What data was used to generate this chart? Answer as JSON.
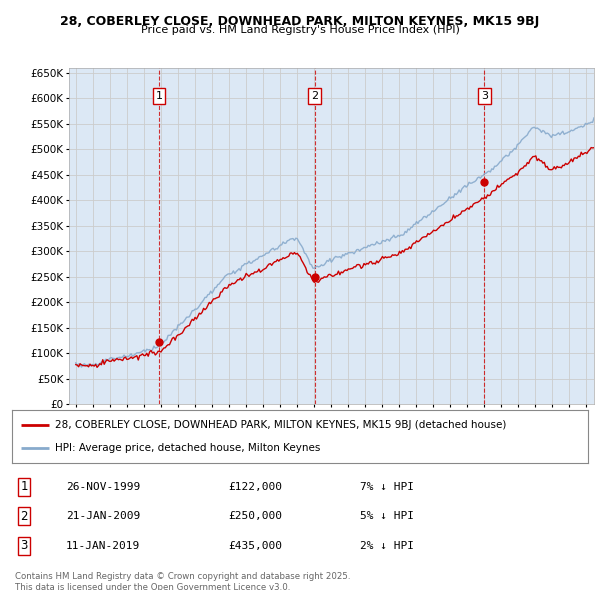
{
  "title_line1": "28, COBERLEY CLOSE, DOWNHEAD PARK, MILTON KEYNES, MK15 9BJ",
  "title_line2": "Price paid vs. HM Land Registry's House Price Index (HPI)",
  "background_color": "#dce8f5",
  "plot_bg_color": "#dce8f5",
  "fig_bg_color": "#ffffff",
  "sale_year_vals": [
    1999.9,
    2009.05,
    2019.05
  ],
  "sale_prices": [
    122000,
    250000,
    435000
  ],
  "sale_labels": [
    "1",
    "2",
    "3"
  ],
  "legend_label_red": "28, COBERLEY CLOSE, DOWNHEAD PARK, MILTON KEYNES, MK15 9BJ (detached house)",
  "legend_label_blue": "HPI: Average price, detached house, Milton Keynes",
  "table_rows": [
    [
      "1",
      "26-NOV-1999",
      "£122,000",
      "7% ↓ HPI"
    ],
    [
      "2",
      "21-JAN-2009",
      "£250,000",
      "5% ↓ HPI"
    ],
    [
      "3",
      "11-JAN-2019",
      "£435,000",
      "2% ↓ HPI"
    ]
  ],
  "footnote": "Contains HM Land Registry data © Crown copyright and database right 2025.\nThis data is licensed under the Open Government Licence v3.0.",
  "ylim": [
    0,
    660000
  ],
  "yticks": [
    0,
    50000,
    100000,
    150000,
    200000,
    250000,
    300000,
    350000,
    400000,
    450000,
    500000,
    550000,
    600000,
    650000
  ],
  "ytick_labels": [
    "£0",
    "£50K",
    "£100K",
    "£150K",
    "£200K",
    "£250K",
    "£300K",
    "£350K",
    "£400K",
    "£450K",
    "£500K",
    "£550K",
    "£600K",
    "£650K"
  ],
  "red_color": "#cc0000",
  "blue_color": "#88aacc",
  "vline_color": "#cc0000",
  "grid_color": "#cccccc",
  "xmin": 1994.6,
  "xmax": 2025.5
}
